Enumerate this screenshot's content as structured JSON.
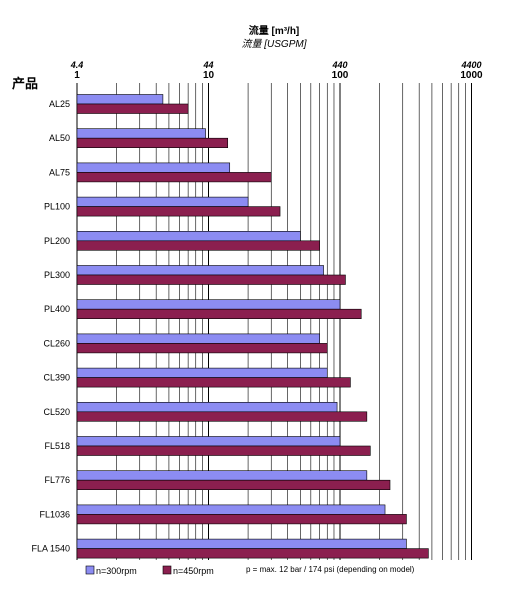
{
  "chart_data": {
    "type": "bar",
    "orientation": "horizontal",
    "title": "流量 [m³/h]",
    "subtitle": "流量 [USGPM]",
    "category_header": "产品",
    "x_scale": "log",
    "xlim": [
      1,
      1000
    ],
    "x_ticks": [
      "1",
      "10",
      "100",
      "1000"
    ],
    "x_ticks_top": [
      "4.4",
      "44",
      "440",
      "4400"
    ],
    "grid": true,
    "legend_position": "bottom-left",
    "categories": [
      "AL25",
      "AL50",
      "AL75",
      "PL100",
      "PL200",
      "PL300",
      "PL400",
      "CL260",
      "CL390",
      "CL520",
      "FL518",
      "FL776",
      "FL1036",
      "FLA 1540"
    ],
    "series": [
      {
        "name": "n=300rpm",
        "color": "#8c8cf2",
        "values": [
          4.5,
          9.5,
          14.5,
          20,
          50,
          75,
          100,
          70,
          80,
          95,
          100,
          160,
          220,
          320
        ]
      },
      {
        "name": "n=450rpm",
        "color": "#8b1f4f",
        "values": [
          7,
          14,
          30,
          35,
          70,
          110,
          145,
          80,
          120,
          160,
          170,
          240,
          320,
          470
        ]
      }
    ],
    "note": "p = max. 12 bar / 174 psi (depending on model)"
  }
}
